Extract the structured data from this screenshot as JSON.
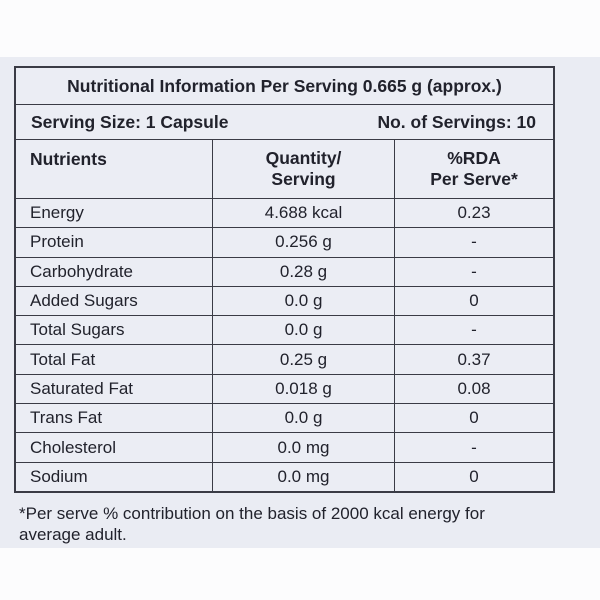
{
  "label": {
    "title": "Nutritional Information Per Serving 0.665 g (approx.)",
    "serving_size": "Serving Size: 1 Capsule",
    "servings_count": "No. of Servings: 10",
    "columns": {
      "nutrients": "Nutrients",
      "quantity_line1": "Quantity/",
      "quantity_line2": "Serving",
      "rda_line1": "%RDA",
      "rda_line2": "Per Serve*"
    },
    "rows": [
      {
        "nutrient": "Energy",
        "quantity": "4.688 kcal",
        "rda": "0.23"
      },
      {
        "nutrient": "Protein",
        "quantity": "0.256 g",
        "rda": "-"
      },
      {
        "nutrient": "Carbohydrate",
        "quantity": "0.28 g",
        "rda": "-"
      },
      {
        "nutrient": "Added Sugars",
        "quantity": "0.0 g",
        "rda": "0"
      },
      {
        "nutrient": "Total Sugars",
        "quantity": "0.0 g",
        "rda": "-"
      },
      {
        "nutrient": "Total Fat",
        "quantity": "0.25 g",
        "rda": "0.37"
      },
      {
        "nutrient": "Saturated Fat",
        "quantity": "0.018 g",
        "rda": "0.08"
      },
      {
        "nutrient": "Trans Fat",
        "quantity": "0.0 g",
        "rda": "0"
      },
      {
        "nutrient": "Cholesterol",
        "quantity": "0.0 mg",
        "rda": "-"
      },
      {
        "nutrient": "Sodium",
        "quantity": "0.0 mg",
        "rda": "0"
      }
    ],
    "footnote_line1": "*Per serve % contribution on the basis of 2000 kcal energy for",
    "footnote_line2": "average adult.",
    "colors": {
      "band_background": "#eaecf3",
      "page_background": "#fcfcfd",
      "border": "#3a3b45",
      "text": "#21222c"
    }
  }
}
